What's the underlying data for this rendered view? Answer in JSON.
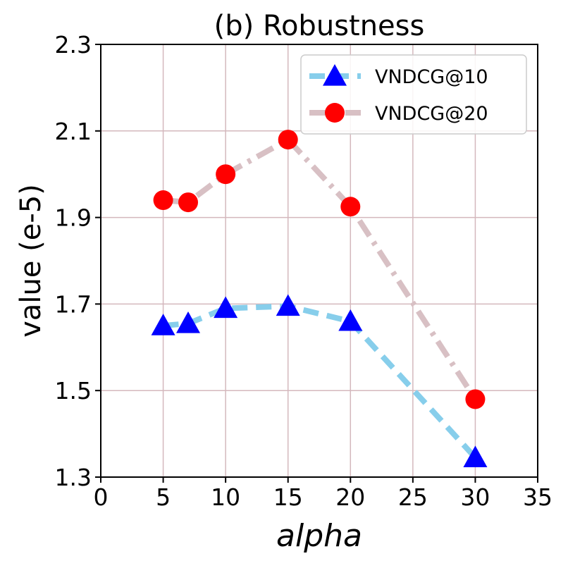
{
  "chart_data": {
    "type": "line",
    "title": "(b) Robustness",
    "xlabel": "alpha",
    "ylabel": "value (e-5)",
    "xlim": [
      0,
      35
    ],
    "ylim": [
      1.3,
      2.3
    ],
    "xticks": [
      0,
      5,
      10,
      15,
      20,
      25,
      30,
      35
    ],
    "xtick_labels": [
      "0",
      "5",
      "10",
      "15",
      "20",
      "25",
      "30",
      "35"
    ],
    "yticks": [
      1.3,
      1.5,
      1.7,
      1.9,
      2.1,
      2.3
    ],
    "ytick_labels": [
      "1.3",
      "1.5",
      "1.7",
      "1.9",
      "2.1",
      "2.3"
    ],
    "grid": true,
    "legend_position": "top-right",
    "series": [
      {
        "name": "VNDCG@10",
        "x": [
          5,
          7,
          10,
          15,
          20,
          30
        ],
        "y": [
          1.65,
          1.655,
          1.69,
          1.695,
          1.66,
          1.345
        ],
        "line_color": "#87ceeb",
        "line_style": "dashed",
        "marker": "triangle",
        "marker_color": "#0000ff"
      },
      {
        "name": "VNDCG@20",
        "x": [
          5,
          7,
          10,
          15,
          20,
          30
        ],
        "y": [
          1.94,
          1.935,
          2.0,
          2.08,
          1.925,
          1.48
        ],
        "line_color": "#d8c0c4",
        "line_style": "dashdot",
        "marker": "circle",
        "marker_color": "#ff0000"
      }
    ]
  }
}
